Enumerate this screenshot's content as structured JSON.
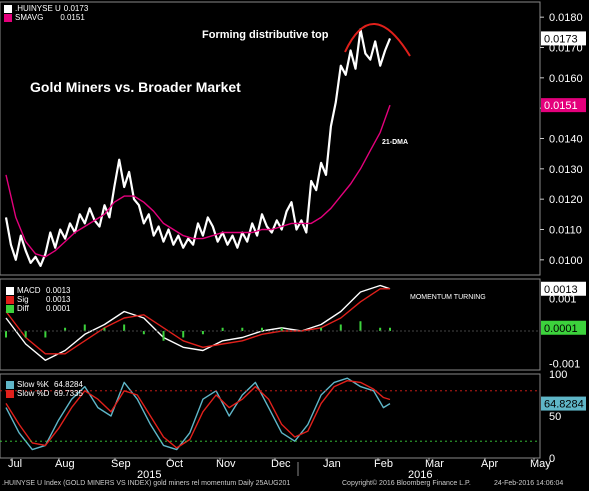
{
  "chart_data": [
    {
      "type": "line",
      "panel": "price",
      "title": "Gold Miners vs. Broader Market",
      "annotations": [
        "Forming distributive top",
        "21-DMA"
      ],
      "ylim": [
        0.0095,
        0.0185
      ],
      "yticks": [
        "0.0100",
        "0.0110",
        "0.0120",
        "0.0130",
        "0.0140",
        "0.0150",
        "0.0160",
        "0.0170",
        "0.0180"
      ],
      "last_value_labels": [
        "0.0173",
        "0.0151"
      ],
      "series": [
        {
          "name": ".HUINYSE U",
          "last": "0.0173",
          "color": "#ffffff",
          "x": [
            0,
            3,
            6,
            9,
            12,
            15,
            18,
            21,
            24,
            27,
            30,
            33,
            36,
            39,
            42,
            45,
            48,
            51,
            54,
            57,
            60,
            63,
            66,
            69,
            72,
            75,
            78,
            81,
            84,
            87,
            90,
            93,
            96,
            99,
            102,
            105,
            108,
            111,
            114,
            117,
            120,
            123,
            126,
            129,
            132,
            135,
            138,
            141,
            144,
            147,
            150,
            153,
            156,
            159,
            162,
            165,
            168,
            171,
            174,
            177,
            180,
            183,
            186,
            189,
            192,
            195,
            198,
            201,
            204,
            207,
            210,
            213,
            216,
            219,
            222,
            225,
            228,
            231,
            234
          ],
          "values": [
            0.0114,
            0.0105,
            0.01,
            0.0108,
            0.0103,
            0.0099,
            0.0101,
            0.0098,
            0.0102,
            0.0109,
            0.0104,
            0.011,
            0.0107,
            0.0112,
            0.0109,
            0.0115,
            0.0112,
            0.0117,
            0.0113,
            0.0111,
            0.0118,
            0.0114,
            0.0124,
            0.0133,
            0.0124,
            0.0129,
            0.012,
            0.0118,
            0.0112,
            0.0115,
            0.0108,
            0.0111,
            0.0106,
            0.011,
            0.0105,
            0.0108,
            0.0104,
            0.0107,
            0.0105,
            0.0112,
            0.0108,
            0.0114,
            0.0111,
            0.0106,
            0.0109,
            0.0105,
            0.0108,
            0.0104,
            0.0109,
            0.0106,
            0.0112,
            0.0108,
            0.0115,
            0.0111,
            0.0109,
            0.0113,
            0.011,
            0.0116,
            0.0119,
            0.011,
            0.0113,
            0.0109,
            0.0126,
            0.0123,
            0.0132,
            0.0128,
            0.0144,
            0.0152,
            0.0164,
            0.0161,
            0.0169,
            0.0163,
            0.0176,
            0.0168,
            0.0166,
            0.0172,
            0.0164,
            0.0169,
            0.0173
          ]
        },
        {
          "name": "SMAVG",
          "last": "0.0151",
          "color": "#e4007c",
          "x": [
            0,
            6,
            12,
            18,
            24,
            30,
            36,
            42,
            48,
            54,
            60,
            66,
            72,
            78,
            84,
            90,
            96,
            102,
            108,
            114,
            120,
            126,
            132,
            138,
            144,
            150,
            156,
            162,
            168,
            174,
            180,
            186,
            192,
            198,
            204,
            210,
            216,
            222,
            228,
            234
          ],
          "values": [
            0.0128,
            0.0114,
            0.0106,
            0.0102,
            0.0101,
            0.0103,
            0.0106,
            0.0109,
            0.0111,
            0.0113,
            0.0115,
            0.0119,
            0.0121,
            0.0121,
            0.0119,
            0.0116,
            0.0112,
            0.011,
            0.0108,
            0.0107,
            0.0107,
            0.0108,
            0.0109,
            0.0109,
            0.0109,
            0.0109,
            0.011,
            0.011,
            0.0111,
            0.0112,
            0.0112,
            0.0112,
            0.0114,
            0.0117,
            0.0121,
            0.0125,
            0.013,
            0.0136,
            0.0142,
            0.0151
          ]
        }
      ]
    },
    {
      "type": "line",
      "panel": "macd",
      "annotations": [
        "MOMENTUM TURNING"
      ],
      "ylim": [
        -0.0012,
        0.0016
      ],
      "yticks": [
        "0.001",
        "-0.001"
      ],
      "last_value_labels": [
        "0.0013",
        "0.0001"
      ],
      "series": [
        {
          "name": "MACD",
          "last": "0.0013",
          "color": "#ffffff",
          "x": [
            0,
            12,
            24,
            36,
            48,
            60,
            72,
            84,
            96,
            108,
            120,
            132,
            144,
            156,
            168,
            180,
            192,
            204,
            216,
            228,
            234
          ],
          "values": [
            0.0004,
            -0.0004,
            -0.0009,
            -0.0006,
            -0.0001,
            0.0002,
            0.0006,
            0.0004,
            -0.0002,
            -0.0005,
            -0.0006,
            -0.0003,
            -0.0002,
            0.0,
            0.0001,
            0.0,
            0.0002,
            0.0006,
            0.0012,
            0.0014,
            0.0013
          ]
        },
        {
          "name": "Sig",
          "last": "0.0013",
          "color": "#e0201b",
          "x": [
            0,
            12,
            24,
            36,
            48,
            60,
            72,
            84,
            96,
            108,
            120,
            132,
            144,
            156,
            168,
            180,
            192,
            204,
            216,
            228,
            234
          ],
          "values": [
            0.0006,
            -0.0002,
            -0.0007,
            -0.0007,
            -0.0003,
            0.0001,
            0.0004,
            0.0005,
            0.0001,
            -0.0003,
            -0.0005,
            -0.0004,
            -0.0003,
            -0.0001,
            0.0,
            0.0,
            0.0001,
            0.0004,
            0.0009,
            0.0013,
            0.0013
          ]
        },
        {
          "name": "Diff",
          "last": "0.0001",
          "color": "#3cd23c",
          "x": [
            0,
            12,
            24,
            36,
            48,
            60,
            72,
            84,
            96,
            108,
            120,
            132,
            144,
            156,
            168,
            180,
            192,
            204,
            216,
            228,
            234
          ],
          "values": [
            -0.0002,
            -0.0002,
            -0.0002,
            0.0001,
            0.0002,
            0.0001,
            0.0002,
            -0.0001,
            -0.0003,
            -0.0002,
            -0.0001,
            0.0001,
            0.0001,
            0.0001,
            0.0001,
            0.0,
            0.0001,
            0.0002,
            0.0003,
            0.0001,
            0.0001
          ]
        }
      ]
    },
    {
      "type": "line",
      "panel": "stochastic",
      "ylim": [
        0,
        100
      ],
      "yticks": [
        "100",
        "50",
        "0"
      ],
      "last_value_labels": [
        "64.8284"
      ],
      "series": [
        {
          "name": "Slow %K",
          "last": "64.8284",
          "color": "#5fb6c8",
          "x": [
            0,
            8,
            16,
            24,
            32,
            40,
            48,
            56,
            64,
            72,
            80,
            88,
            96,
            104,
            112,
            120,
            128,
            136,
            144,
            152,
            160,
            168,
            176,
            184,
            192,
            200,
            208,
            216,
            224,
            230,
            234
          ],
          "values": [
            60,
            30,
            10,
            15,
            45,
            70,
            85,
            60,
            50,
            90,
            70,
            40,
            15,
            10,
            30,
            70,
            80,
            50,
            75,
            90,
            60,
            30,
            20,
            40,
            75,
            90,
            95,
            85,
            80,
            60,
            64.8
          ]
        },
        {
          "name": "Slow %D",
          "last": "69.7335",
          "color": "#e0201b",
          "x": [
            0,
            8,
            16,
            24,
            32,
            40,
            48,
            56,
            64,
            72,
            80,
            88,
            96,
            104,
            112,
            120,
            128,
            136,
            144,
            152,
            160,
            168,
            176,
            184,
            192,
            200,
            208,
            216,
            224,
            230,
            234
          ],
          "values": [
            65,
            40,
            18,
            15,
            35,
            60,
            80,
            70,
            55,
            80,
            75,
            50,
            25,
            12,
            22,
            55,
            75,
            60,
            70,
            85,
            70,
            40,
            25,
            32,
            65,
            85,
            92,
            90,
            82,
            72,
            69.7
          ]
        }
      ]
    }
  ],
  "legend": {
    "price": [
      {
        "name": ".HUINYSE U",
        "value": "0.0173",
        "color": "#ffffff"
      },
      {
        "name": "SMAVG",
        "value": "0.0151",
        "color": "#e4007c"
      }
    ],
    "macd": [
      {
        "name": "MACD",
        "value": "0.0013",
        "color": "#ffffff"
      },
      {
        "name": "Sig",
        "value": "0.0013",
        "color": "#e0201b"
      },
      {
        "name": "Diff",
        "value": "0.0001",
        "color": "#3cd23c"
      }
    ],
    "stoch": [
      {
        "name": "Slow %K",
        "value": "64.8284",
        "color": "#5fb6c8"
      },
      {
        "name": "Slow %D",
        "value": "69.7335",
        "color": "#e0201b"
      }
    ]
  },
  "x_axis": {
    "months": [
      "Jul",
      "Aug",
      "Sep",
      "Oct",
      "Nov",
      "Dec",
      "Jan",
      "Feb",
      "Mar",
      "Apr",
      "May"
    ],
    "years": [
      "2015",
      "2016"
    ]
  },
  "footer": {
    "left": ".HUINYSE U Index (GOLD MINERS VS INDEX) gold miners rel momentum  Daily 25AUG201",
    "center": "Copyright© 2016 Bloomberg Finance L.P.",
    "right": "24-Feb-2016 14:06:04"
  }
}
